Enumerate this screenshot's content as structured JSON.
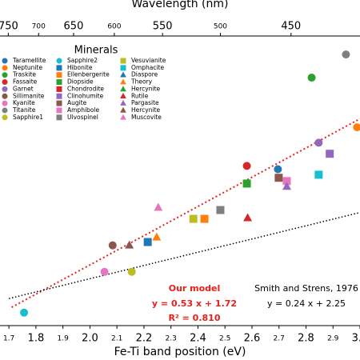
{
  "chart_data": {
    "type": "scatter",
    "xlabel": "Fe-Ti band position (eV)",
    "x2label": "Wavelength (nm)",
    "xlim": [
      1.667,
      3.0
    ],
    "xticks": [
      1.7,
      1.8,
      1.9,
      {
        "value": 2,
        "label": "2.0"
      },
      2.1,
      2.2,
      2.3,
      2.4,
      2.5,
      2.6,
      2.7,
      2.8,
      2.9,
      {
        "value": 3,
        "label": "3.0"
      }
    ],
    "x2lim": [
      765,
      410
    ],
    "x2scale": "reciprocal",
    "x2ticks": [
      750,
      700,
      650,
      600,
      550,
      500,
      450
    ],
    "ylim": [
      2.56,
      3.61
    ],
    "grid": false,
    "legend_title": "Minerals",
    "legend": "upper left",
    "series": [
      {
        "name": "Taramellite",
        "color": "#1f77b4",
        "marker": "o",
        "x": [
          2.696
        ],
        "y": [
          3.127
        ]
      },
      {
        "name": "Neptunite",
        "color": "#ff7f0e",
        "marker": "o",
        "x": [
          2.989
        ],
        "y": [
          3.279
        ]
      },
      {
        "name": "Traskite",
        "color": "#2ca02c",
        "marker": "o",
        "x": [
          2.821
        ],
        "y": [
          3.459
        ]
      },
      {
        "name": "Fassaite",
        "color": "#d62728",
        "marker": "o",
        "x": [
          2.581
        ],
        "y": [
          3.139
        ]
      },
      {
        "name": "Garnet",
        "color": "#9467bd",
        "marker": "o",
        "x": [
          2.847
        ],
        "y": [
          3.223
        ]
      },
      {
        "name": "Sillimanite",
        "color": "#8c564b",
        "marker": "o",
        "x": [
          2.084
        ],
        "y": [
          2.851
        ]
      },
      {
        "name": "Kyanite",
        "color": "#e377c2",
        "marker": "o",
        "x": [
          2.054
        ],
        "y": [
          2.755
        ]
      },
      {
        "name": "Titanite",
        "color": "#7f7f7f",
        "marker": "o",
        "x": [
          2.948
        ],
        "y": [
          3.543
        ]
      },
      {
        "name": "Sapphire1",
        "color": "#bcbd22",
        "marker": "o",
        "x": [
          2.155
        ],
        "y": [
          2.755
        ]
      },
      {
        "name": "Sapphire2",
        "color": "#17becf",
        "marker": "o",
        "x": [
          1.756
        ],
        "y": [
          2.607
        ]
      },
      {
        "name": "Hibonite",
        "color": "#1f77b4",
        "marker": "s",
        "x": [
          2.214
        ],
        "y": [
          2.863
        ]
      },
      {
        "name": "Ellenbergerite",
        "color": "#ff7f0e",
        "marker": "s",
        "x": [
          2.424
        ],
        "y": [
          2.947
        ]
      },
      {
        "name": "Diopside",
        "color": "#2ca02c",
        "marker": "s",
        "x": [
          2.581
        ],
        "y": [
          3.075
        ]
      },
      {
        "name": "Chondrodite",
        "color": "#d62728",
        "marker": "s",
        "x": [],
        "y": []
      },
      {
        "name": "Clinohumite",
        "color": "#9467bd",
        "marker": "s",
        "x": [
          2.888
        ],
        "y": [
          3.183
        ]
      },
      {
        "name": "Augite",
        "color": "#8c564b",
        "marker": "s",
        "x": [
          2.699
        ],
        "y": [
          3.096
        ]
      },
      {
        "name": "Amphibole",
        "color": "#e377c2",
        "marker": "s",
        "x": [
          2.729
        ],
        "y": [
          3.084
        ]
      },
      {
        "name": "Ulvospinel",
        "color": "#7f7f7f",
        "marker": "s",
        "x": [
          2.483
        ],
        "y": [
          2.979
        ]
      },
      {
        "name": "Vesuvianite",
        "color": "#bcbd22",
        "marker": "s",
        "x": [
          2.383
        ],
        "y": [
          2.947
        ]
      },
      {
        "name": "Omphacite",
        "color": "#17becf",
        "marker": "s",
        "x": [
          2.847
        ],
        "y": [
          3.107
        ]
      },
      {
        "name": "Diaspore",
        "color": "#1f77b4",
        "marker": "^",
        "x": [],
        "y": []
      },
      {
        "name": "Theory",
        "color": "#ff7f0e",
        "marker": "^",
        "x": [
          2.247
        ],
        "y": [
          2.88
        ]
      },
      {
        "name": "Hercynite",
        "color": "#2ca02c",
        "marker": "^",
        "x": [],
        "y": []
      },
      {
        "name": "Rutile",
        "color": "#d62728",
        "marker": "^",
        "x": [
          2.584
        ],
        "y": [
          2.95
        ]
      },
      {
        "name": "Pargasite",
        "color": "#9467bd",
        "marker": "^",
        "x": [
          2.729
        ],
        "y": [
          3.064
        ]
      },
      {
        "name": "Hercynite",
        "color": "#8c564b",
        "marker": "^",
        "x": [
          2.146
        ],
        "y": [
          2.851
        ]
      },
      {
        "name": "Muscovite",
        "color": "#e377c2",
        "marker": "^",
        "x": [
          2.253
        ],
        "y": [
          2.988
        ]
      }
    ],
    "fits": [
      {
        "slope": 0.53,
        "intercept": 1.72,
        "x_range": [
          1.71,
          3.0
        ],
        "color": "#e8201a",
        "title": "Our model",
        "equation": "y = 0.53 x + 1.72",
        "r2_label": "R² = 0.810"
      },
      {
        "slope": 0.24,
        "intercept": 2.25,
        "x_range": [
          1.7,
          3.0
        ],
        "color": "#000000",
        "title": "Smith and Strens, 1976",
        "equation": "y = 0.24 x + 2.25"
      }
    ]
  }
}
